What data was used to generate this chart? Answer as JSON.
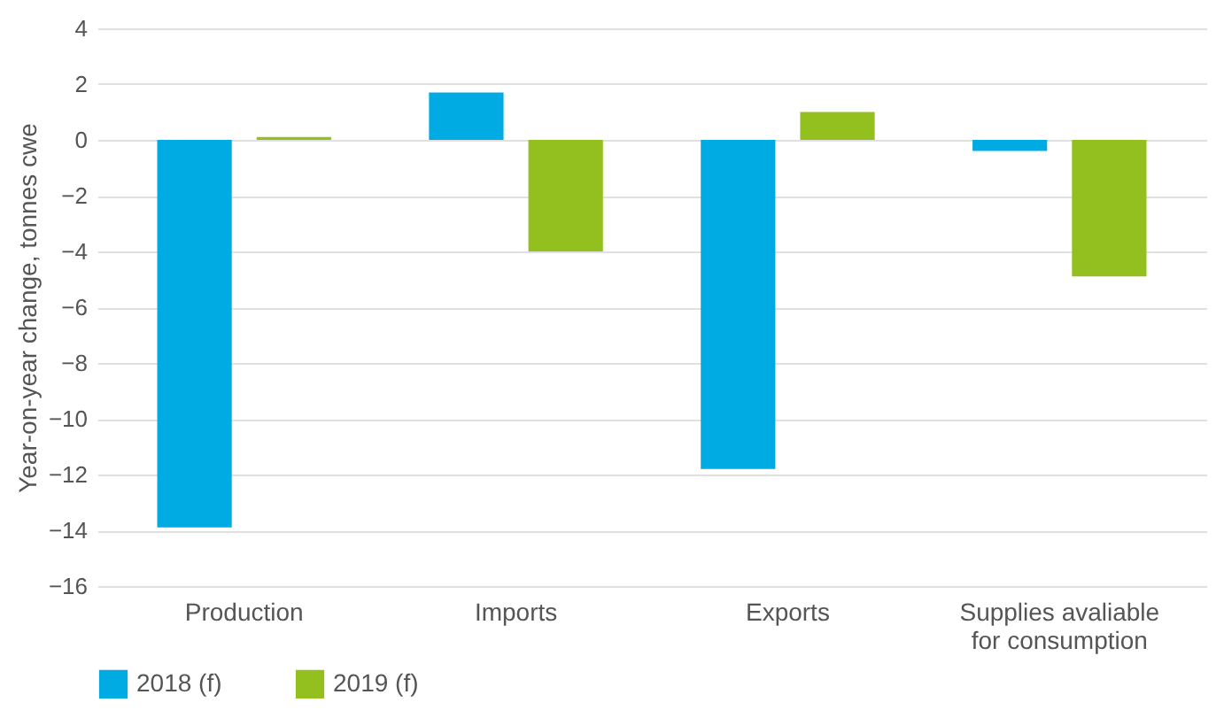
{
  "chart_data": {
    "type": "bar",
    "ylabel": "Year-on-year change, tonnes cwe",
    "categories": [
      "Production",
      "Imports",
      "Exports",
      "Supplies avaliable for consumption"
    ],
    "series": [
      {
        "name": "2018 (f)",
        "color": "#00aae2",
        "values": [
          -13.9,
          1.7,
          -11.8,
          -0.4
        ]
      },
      {
        "name": "2019 (f)",
        "color": "#93c01f",
        "values": [
          0.1,
          -4.0,
          1.0,
          -4.9
        ]
      }
    ],
    "ylim": [
      -16,
      4
    ],
    "yticks": [
      -16,
      -14,
      -12,
      -10,
      -8,
      -6,
      -4,
      -2,
      0,
      2,
      4
    ],
    "grid": "y",
    "legend": "bottom"
  }
}
